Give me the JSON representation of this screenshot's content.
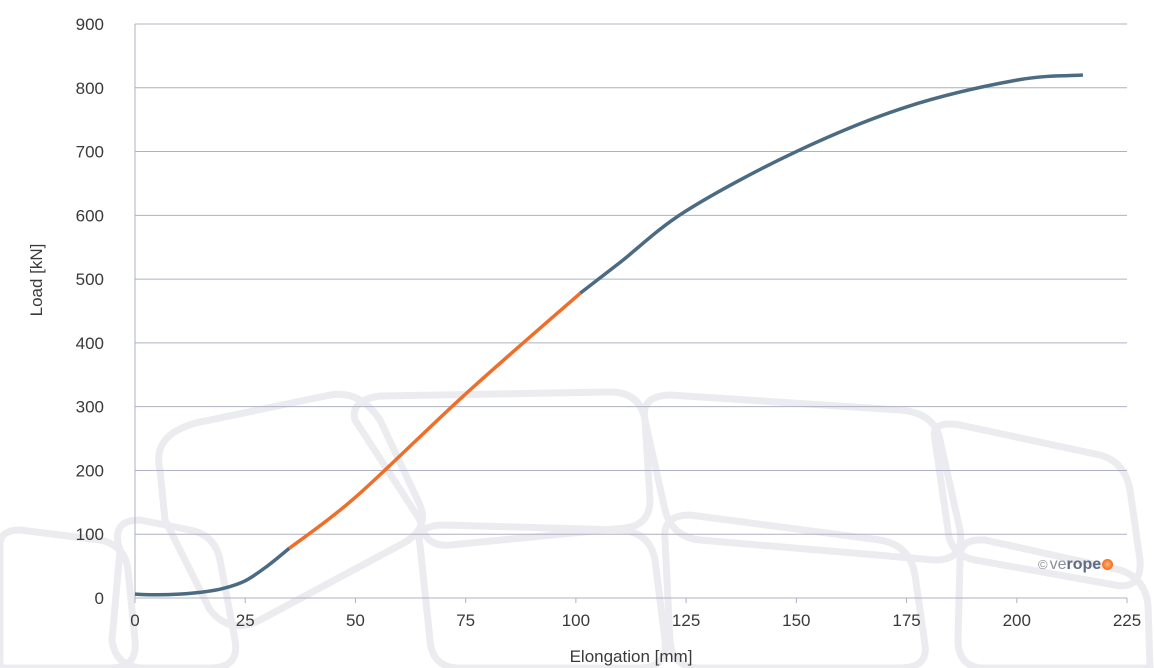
{
  "chart_data": {
    "type": "line",
    "title": "",
    "xlabel": "Elongation [mm]",
    "ylabel": "Load [kN]",
    "xlim": [
      0,
      225
    ],
    "ylim": [
      0,
      900
    ],
    "x_ticks": [
      "0",
      "25",
      "50",
      "75",
      "100",
      "125",
      "150",
      "175",
      "200",
      "225"
    ],
    "y_ticks": [
      "0",
      "100",
      "200",
      "300",
      "400",
      "500",
      "600",
      "700",
      "800",
      "900"
    ],
    "grid": "horizontal",
    "legend": "none",
    "series": [
      {
        "color": "#4b6b82",
        "points": [
          [
            0,
            6
          ],
          [
            5,
            5
          ],
          [
            10,
            6
          ],
          [
            15,
            9
          ],
          [
            20,
            15
          ],
          [
            25,
            27
          ],
          [
            30,
            50
          ],
          [
            35,
            78
          ]
        ]
      },
      {
        "color": "#ee6f2a",
        "points": [
          [
            35,
            78
          ],
          [
            50,
            158
          ],
          [
            75,
            320
          ],
          [
            101,
            478
          ]
        ]
      },
      {
        "color": "#4b6b82",
        "points": [
          [
            101,
            478
          ],
          [
            110,
            526
          ],
          [
            125,
            607
          ],
          [
            150,
            700
          ],
          [
            175,
            770
          ],
          [
            200,
            812
          ],
          [
            215,
            820
          ]
        ]
      }
    ]
  },
  "brand": {
    "copyright": "©",
    "name_light": "ve",
    "name_bold": "rope"
  }
}
